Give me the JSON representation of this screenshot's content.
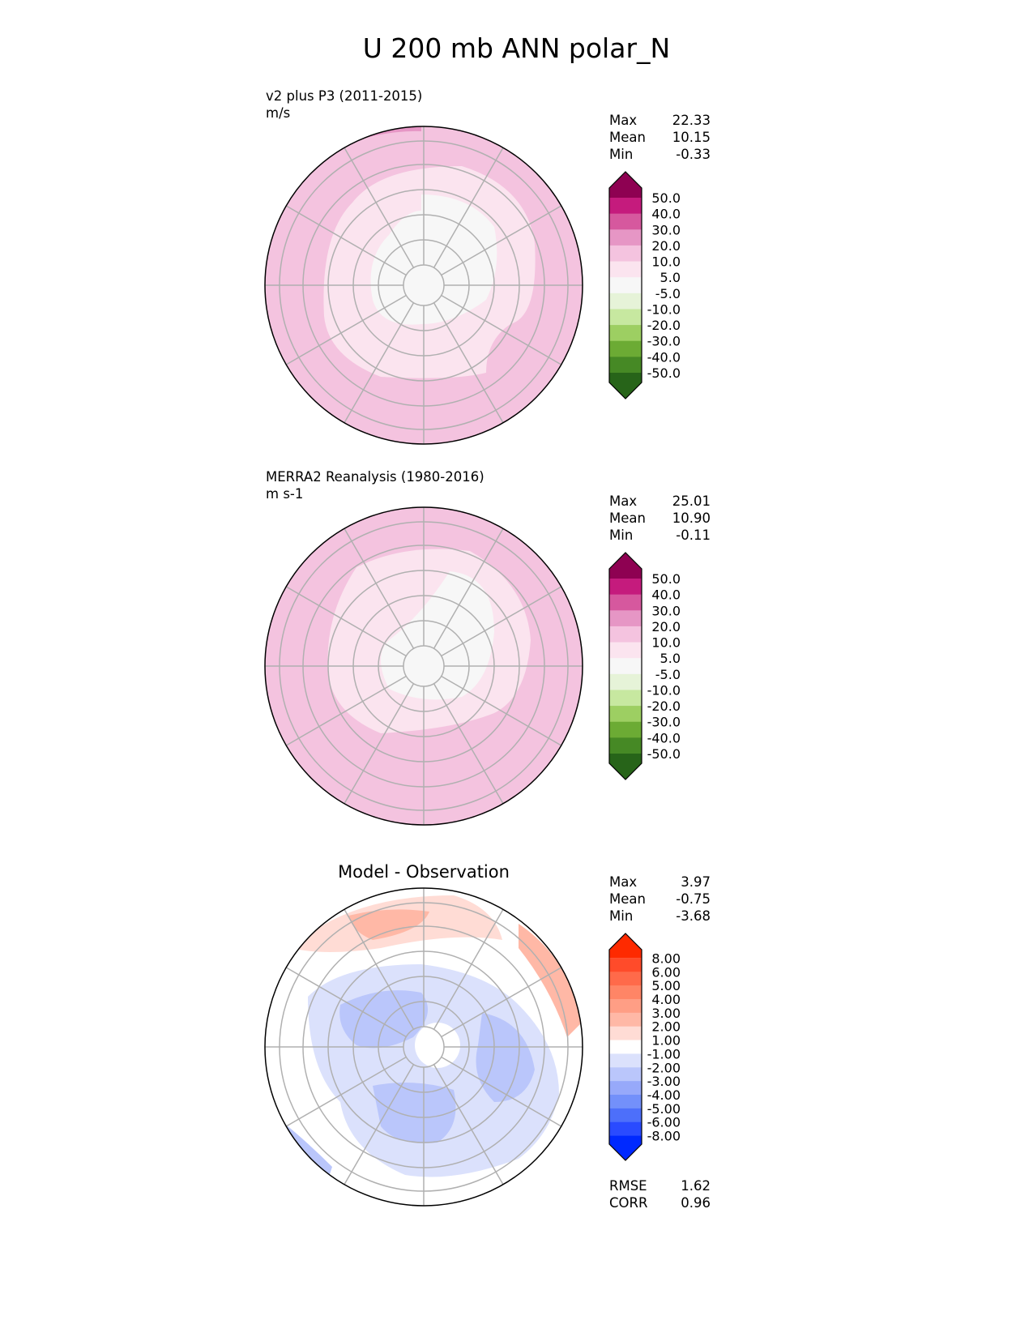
{
  "title": "U 200 mb ANN polar_N",
  "panels": [
    {
      "subtitle": "v2 plus P3 (2011-2015)",
      "units": "m/s",
      "stats": [
        {
          "label": "Max",
          "value": "22.33"
        },
        {
          "label": "Mean",
          "value": "10.15"
        },
        {
          "label": "Min",
          "value": "-0.33"
        }
      ],
      "colorbar": {
        "ticks": [
          "50.0",
          "40.0",
          "30.0",
          "20.0",
          "10.0",
          "5.0",
          "-5.0",
          "-10.0",
          "-20.0",
          "-30.0",
          "-40.0",
          "-50.0"
        ],
        "colors": [
          "#8e0152",
          "#c51b7d",
          "#d6589e",
          "#e696c5",
          "#f4c3df",
          "#fbe4ef",
          "#f7f7f7",
          "#e6f3d8",
          "#c7e8a0",
          "#9dcf62",
          "#6cab34",
          "#468925",
          "#276419"
        ]
      }
    },
    {
      "subtitle": "MERRA2 Reanalysis (1980-2016)",
      "units": "m s-1",
      "stats": [
        {
          "label": "Max",
          "value": "25.01"
        },
        {
          "label": "Mean",
          "value": "10.90"
        },
        {
          "label": "Min",
          "value": "-0.11"
        }
      ],
      "colorbar": {
        "ticks": [
          "50.0",
          "40.0",
          "30.0",
          "20.0",
          "10.0",
          "5.0",
          "-5.0",
          "-10.0",
          "-20.0",
          "-30.0",
          "-40.0",
          "-50.0"
        ],
        "colors": [
          "#8e0152",
          "#c51b7d",
          "#d6589e",
          "#e696c5",
          "#f4c3df",
          "#fbe4ef",
          "#f7f7f7",
          "#e6f3d8",
          "#c7e8a0",
          "#9dcf62",
          "#6cab34",
          "#468925",
          "#276419"
        ]
      }
    },
    {
      "subtitle": "Model - Observation",
      "stats": [
        {
          "label": "Max",
          "value": "3.97"
        },
        {
          "label": "Mean",
          "value": "-0.75"
        },
        {
          "label": "Min",
          "value": "-3.68"
        }
      ],
      "metrics": [
        {
          "label": "RMSE",
          "value": "1.62"
        },
        {
          "label": "CORR",
          "value": "0.96"
        }
      ],
      "colorbar": {
        "ticks": [
          "8.00",
          "6.00",
          "5.00",
          "4.00",
          "3.00",
          "2.00",
          "1.00",
          "-1.00",
          "-2.00",
          "-3.00",
          "-4.00",
          "-5.00",
          "-6.00",
          "-8.00"
        ],
        "colors": [
          "#fe2a00",
          "#ff4b2a",
          "#ff6a4a",
          "#ff8566",
          "#ff9e85",
          "#ffb8a6",
          "#ffdcd5",
          "#ffffff",
          "#dbe1fc",
          "#bac6fb",
          "#97a9fa",
          "#7390fa",
          "#4d6ffa",
          "#2a4bff",
          "#0029ff"
        ]
      }
    }
  ]
}
